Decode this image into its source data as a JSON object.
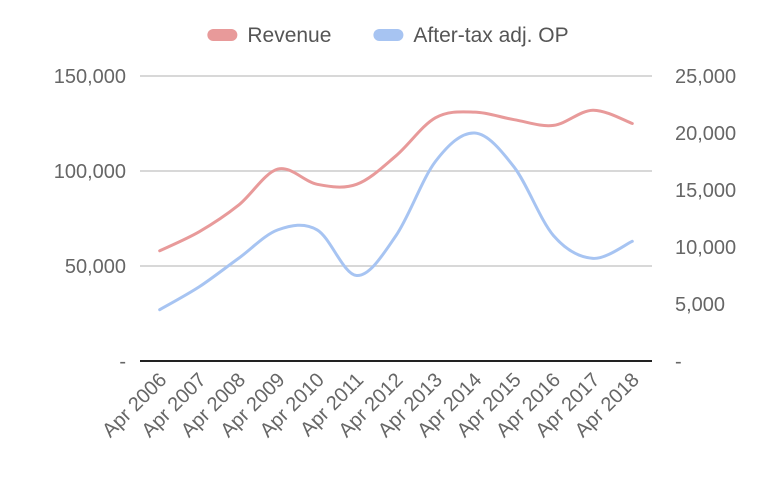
{
  "chart_data": {
    "type": "line",
    "title": "",
    "xlabel": "",
    "ylabel": "",
    "y2label": "",
    "categories": [
      "Apr 2006",
      "Apr 2007",
      "Apr 2008",
      "Apr 2009",
      "Apr 2010",
      "Apr 2011",
      "Apr 2012",
      "Apr 2013",
      "Apr 2014",
      "Apr 2015",
      "Apr 2016",
      "Apr 2017",
      "Apr 2018"
    ],
    "series": [
      {
        "name": "Revenue",
        "axis": "left",
        "color": "#e89a9a",
        "values": [
          58000,
          68000,
          82000,
          101000,
          93000,
          93000,
          108000,
          128000,
          131000,
          127000,
          124000,
          132000,
          125000
        ]
      },
      {
        "name": "After-tax adj. OP",
        "axis": "right",
        "color": "#a7c4f2",
        "values": [
          4500,
          6500,
          9000,
          11500,
          11500,
          7500,
          11000,
          17500,
          20000,
          17000,
          11000,
          9000,
          10500
        ]
      }
    ],
    "y_left": {
      "min": 0,
      "max": 150000,
      "ticks": [
        "-",
        "50,000",
        "100,000",
        "150,000"
      ]
    },
    "y_right": {
      "min": 0,
      "max": 25000,
      "ticks": [
        "-",
        "5,000",
        "10,000",
        "15,000",
        "20,000",
        "25,000"
      ]
    },
    "grid": true,
    "legend_position": "top-center"
  }
}
